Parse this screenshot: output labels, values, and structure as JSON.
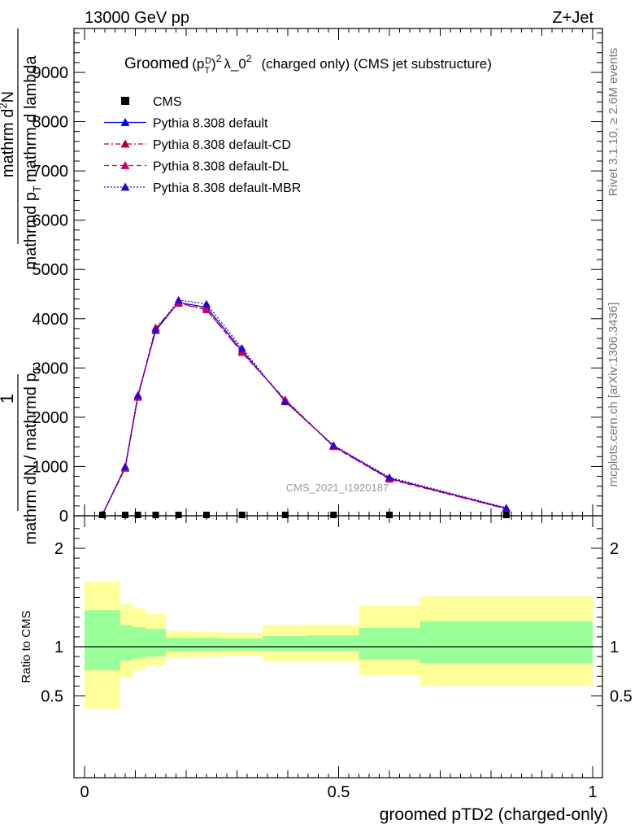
{
  "header": {
    "left": "13000 GeV pp",
    "right": "Z+Jet"
  },
  "plot_title": {
    "main": "Groomed",
    "p": "(p",
    "p_sub": "T",
    "p_sup": "D",
    "close": ")",
    "exp": "2",
    "rest": "λ_0",
    "rest_exp": "2",
    "suffix": "(charged only) (CMS jet substructure)"
  },
  "side_labels": {
    "rivet": "Rivet 3.1.10, ≥ 2.6M events",
    "mcplots": "mcplots.cern.ch [arXiv:1306.3436]"
  },
  "watermark": "CMS_2021_I1920187",
  "y_label_main": {
    "numerator_1": "1",
    "denominator_1": "mathrm dN / mathrmd p",
    "denominator_1_sub": "T",
    "numerator_2": "mathrm d",
    "numerator_2_sup": "2",
    "numerator_2_rest": "N",
    "denominator_2": "mathrmd p",
    "denominator_2_sub": "T",
    "denominator_2_rest": "mathrm d lambda"
  },
  "y_label_ratio": "Ratio to CMS",
  "x_label": "groomed pTD2 (charged-only)",
  "colors": {
    "default": "#0000ff",
    "cd": "#b2003a",
    "dl": "#cc0066",
    "mbr": "#3300cc",
    "band_inner": "#99ff99",
    "band_outer": "#ffff99"
  },
  "chart_data": {
    "type": "line",
    "x_range": [
      0,
      1
    ],
    "x_ticks": [
      0,
      0.5,
      1
    ],
    "main": {
      "y_range": [
        0,
        9800
      ],
      "y_ticks": [
        0,
        1000,
        2000,
        3000,
        4000,
        5000,
        6000,
        7000,
        8000,
        9000
      ],
      "y_tick_labels": [
        "0",
        "1000",
        "2000",
        "3000",
        "4000",
        "5000",
        "6000",
        "7000",
        "8000",
        "9000"
      ],
      "y_tick_labels_visible": [
        "0",
        "1000",
        "2000",
        "3000",
        "4000",
        "5000",
        "6000",
        "7000",
        "8000",
        "9000"
      ],
      "x": [
        0.035,
        0.08,
        0.105,
        0.14,
        0.185,
        0.24,
        0.31,
        0.395,
        0.49,
        0.6,
        0.83
      ],
      "cms": [
        0,
        0,
        0,
        0,
        0,
        0,
        0,
        0,
        0,
        0,
        0
      ],
      "series": [
        {
          "name": "CMS",
          "style": "marker"
        },
        {
          "name": "Pythia 8.308 default",
          "style": "solid",
          "values": [
            20,
            980,
            2430,
            3760,
            4330,
            4230,
            3350,
            2330,
            1420,
            760,
            150
          ]
        },
        {
          "name": "Pythia 8.308 default-CD",
          "style": "dashdot",
          "values": [
            20,
            970,
            2420,
            3820,
            4310,
            4180,
            3320,
            2360,
            1410,
            750,
            140
          ]
        },
        {
          "name": "Pythia 8.308 default-DL",
          "style": "dashed",
          "values": [
            20,
            960,
            2400,
            3800,
            4320,
            4190,
            3310,
            2350,
            1400,
            740,
            140
          ]
        },
        {
          "name": "Pythia 8.308 default-MBR",
          "style": "dotted",
          "values": [
            20,
            1000,
            2450,
            3770,
            4380,
            4300,
            3400,
            2310,
            1430,
            780,
            160
          ]
        }
      ]
    },
    "ratio": {
      "y_range": [
        0.35,
        2.25
      ],
      "y_ticks": [
        0.5,
        1,
        2
      ],
      "y_tick_labels": [
        "0.5",
        "1",
        "2"
      ],
      "bins": [
        0.0,
        0.07,
        0.095,
        0.12,
        0.16,
        0.21,
        0.27,
        0.35,
        0.44,
        0.54,
        0.66,
        1.0
      ],
      "inner": [
        [
          0.76,
          1.37
        ],
        [
          0.86,
          1.22
        ],
        [
          0.88,
          1.2
        ],
        [
          0.9,
          1.18
        ],
        [
          0.95,
          1.09
        ],
        [
          0.955,
          1.09
        ],
        [
          0.96,
          1.085
        ],
        [
          0.955,
          1.11
        ],
        [
          0.955,
          1.115
        ],
        [
          0.87,
          1.19
        ],
        [
          0.835,
          1.26
        ]
      ],
      "outer": [
        [
          0.37,
          1.66
        ],
        [
          0.69,
          1.43
        ],
        [
          0.76,
          1.39
        ],
        [
          0.81,
          1.33
        ],
        [
          0.89,
          1.16
        ],
        [
          0.895,
          1.15
        ],
        [
          0.91,
          1.14
        ],
        [
          0.85,
          1.22
        ],
        [
          0.85,
          1.225
        ],
        [
          0.71,
          1.42
        ],
        [
          0.6,
          1.51
        ]
      ]
    }
  }
}
